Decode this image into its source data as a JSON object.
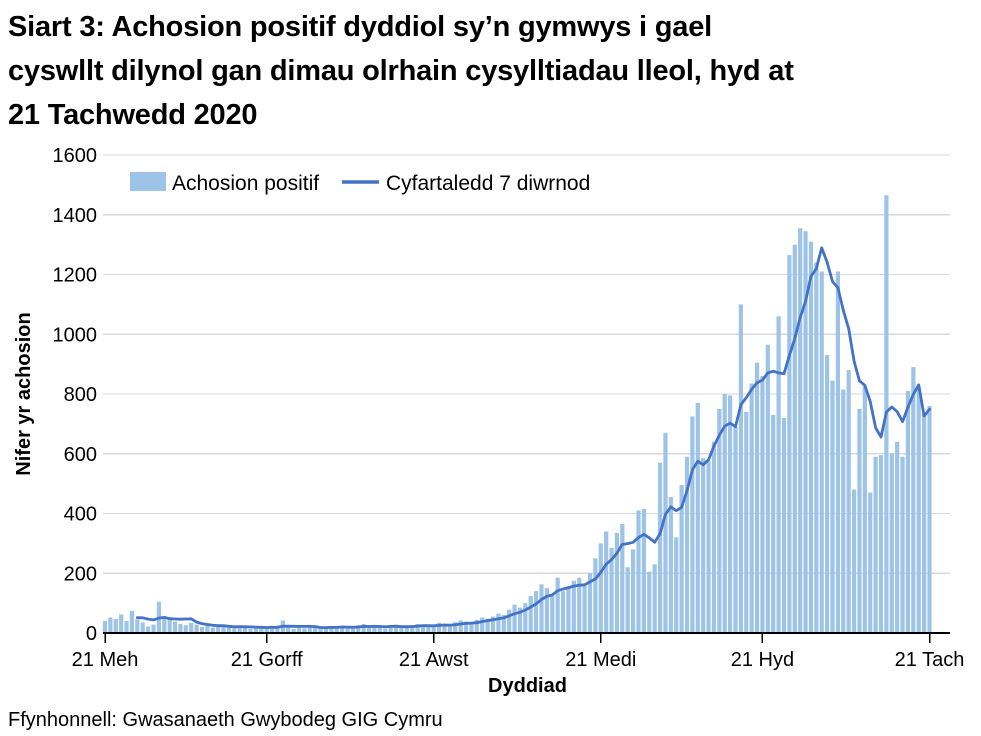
{
  "title_lines": [
    "Siart 3: Achosion positif dyddiol sy’n gymwys i gael",
    "cyswllt dilynol gan dimau olrhain cysylltiadau lleol, hyd at",
    "21 Tachwedd 2020"
  ],
  "source": "Ffynhonnell: Gwasanaeth Gwybodeg GIG Cymru",
  "colors": {
    "bar": "#9DC3E6",
    "line": "#4472C4",
    "grid": "#D9D9D9",
    "axis": "#000000",
    "background": "#FFFFFF"
  },
  "chart_data": {
    "type": "bar",
    "title": "Siart 3: Achosion positif dyddiol sy’n gymwys i gael cyswllt dilynol gan dimau olrhain cysylltiadau lleol, hyd at 21 Tachwedd 2020",
    "xlabel": "Dyddiad",
    "ylabel": "Nifer yr achosion",
    "ylim": [
      0,
      1600
    ],
    "yticks": [
      0,
      200,
      400,
      600,
      800,
      1000,
      1200,
      1400,
      1600
    ],
    "grid": "horizontal",
    "legend_position": "top-left inside plot",
    "x_ticks": [
      {
        "label": "21 Meh",
        "day": 0
      },
      {
        "label": "21 Gorff",
        "day": 30
      },
      {
        "label": "21 Awst",
        "day": 61
      },
      {
        "label": "21 Medi",
        "day": 92
      },
      {
        "label": "21 Hyd",
        "day": 122
      },
      {
        "label": "21 Tach",
        "day": 153
      }
    ],
    "x_range_note": "daily values from 21 Mehefin 2020 to 21 Tachwedd 2020 (154 days)",
    "series": [
      {
        "name": "Achosion positif",
        "type": "bar",
        "values": [
          40,
          52,
          47,
          62,
          40,
          74,
          46,
          35,
          22,
          28,
          105,
          55,
          45,
          38,
          30,
          26,
          34,
          28,
          20,
          24,
          18,
          22,
          26,
          20,
          16,
          24,
          20,
          14,
          18,
          22,
          16,
          20,
          24,
          42,
          18,
          14,
          20,
          16,
          22,
          18,
          20,
          16,
          22,
          18,
          24,
          20,
          14,
          26,
          30,
          20,
          24,
          18,
          14,
          22,
          28,
          24,
          18,
          26,
          30,
          24,
          20,
          26,
          34,
          28,
          24,
          36,
          42,
          38,
          30,
          44,
          52,
          48,
          55,
          65,
          60,
          78,
          95,
          85,
          100,
          124,
          140,
          163,
          150,
          130,
          185,
          140,
          155,
          175,
          185,
          160,
          200,
          250,
          300,
          340,
          285,
          335,
          365,
          220,
          280,
          410,
          415,
          205,
          230,
          570,
          670,
          455,
          320,
          495,
          590,
          725,
          770,
          585,
          575,
          640,
          750,
          800,
          795,
          690,
          1100,
          740,
          835,
          905,
          860,
          965,
          730,
          1060,
          720,
          1265,
          1300,
          1355,
          1345,
          1310,
          1240,
          1210,
          930,
          845,
          1210,
          815,
          880,
          480,
          750,
          825,
          470,
          590,
          595,
          1465,
          600,
          640,
          590,
          810,
          890,
          820,
          735,
          760
        ]
      },
      {
        "name": "Cyfartaledd 7 diwrnod",
        "type": "line",
        "derived": "7-day rolling mean of the daily Achosion positif values"
      }
    ]
  }
}
